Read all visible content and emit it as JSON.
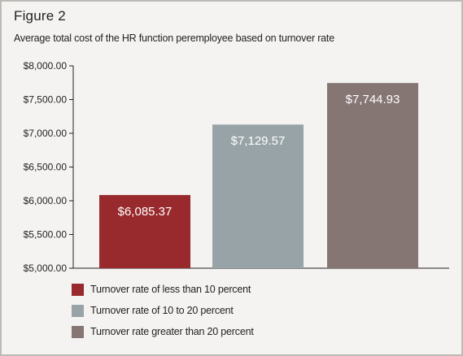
{
  "figure_label": "Figure 2",
  "chart_data": {
    "type": "bar",
    "title": "Average total cost of the HR function peremployee based on turnover rate",
    "categories": [
      "Turnover rate of less than 10 percent",
      "Turnover rate of 10 to 20 percent",
      "Turnover rate greater than 20 percent"
    ],
    "values": [
      6085.37,
      7129.57,
      7744.93
    ],
    "value_labels": [
      "$6,085.37",
      "$7,129.57",
      "$7,744.93"
    ],
    "colors": [
      "#982a2d",
      "#98a3a7",
      "#857673"
    ],
    "ylim": [
      5000,
      8000
    ],
    "yticks": [
      5000,
      5500,
      6000,
      6500,
      7000,
      7500,
      8000
    ],
    "ytick_labels": [
      "$5,000.00",
      "$5,500.00",
      "$6,000.00",
      "$6,500.00",
      "$7,000.00",
      "$7,500.00",
      "$8,000.00"
    ],
    "xlabel": "",
    "ylabel": "",
    "grid": false,
    "legend_position": "bottom-left",
    "axis_color": "#231f20"
  }
}
